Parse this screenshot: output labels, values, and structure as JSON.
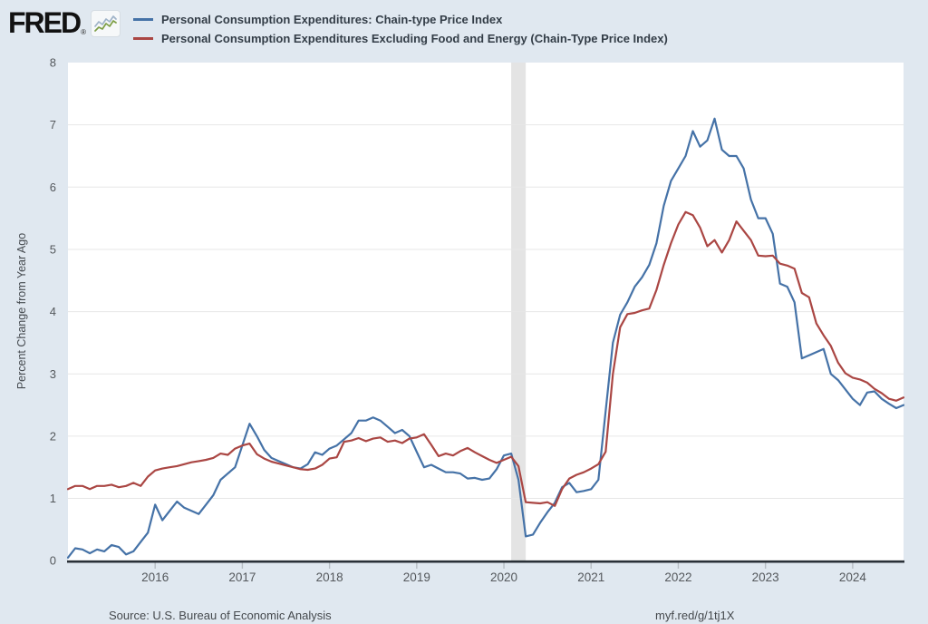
{
  "header": {
    "logo_text": "FRED",
    "logo_registered": "®",
    "legend": [
      {
        "label": "Personal Consumption Expenditures: Chain-type Price Index",
        "color": "#4572a7"
      },
      {
        "label": "Personal Consumption Expenditures Excluding Food and Energy (Chain-Type Price Index)",
        "color": "#aa4643"
      }
    ]
  },
  "footer": {
    "source": "Source: U.S. Bureau of Economic Analysis",
    "shortlink": "myf.red/g/1tj1X"
  },
  "colors": {
    "background": "#e0e8f0",
    "plot_background": "#ffffff",
    "gridline": "#e7e7e7",
    "recession_band": "#e4e4e4",
    "axis_line": "#2a3138",
    "tick_text": "#54585c",
    "tick_mark": "#b6bdc4"
  },
  "chart_data": {
    "type": "line",
    "title": "",
    "xlabel": "",
    "ylabel": "Percent Change from Year Ago",
    "ylim": [
      0,
      8
    ],
    "yticks": [
      0,
      1,
      2,
      3,
      4,
      5,
      6,
      7,
      8
    ],
    "xticks": [
      "2016",
      "2017",
      "2018",
      "2019",
      "2020",
      "2021",
      "2022",
      "2023",
      "2024"
    ],
    "frequency": "monthly",
    "x_start": "2015-01",
    "x_end": "2024-08",
    "grid": "horizontal",
    "legend_position": "top",
    "recession_band": {
      "start": "2020-02",
      "end": "2020-04"
    },
    "series": [
      {
        "name": "Personal Consumption Expenditures: Chain-type Price Index",
        "color": "#4572a7",
        "values": [
          0.05,
          0.2,
          0.18,
          0.12,
          0.18,
          0.15,
          0.25,
          0.22,
          0.1,
          0.15,
          0.3,
          0.45,
          0.9,
          0.65,
          0.8,
          0.95,
          0.85,
          0.8,
          0.75,
          0.9,
          1.05,
          1.3,
          1.4,
          1.5,
          1.85,
          2.2,
          2.0,
          1.78,
          1.65,
          1.6,
          1.55,
          1.5,
          1.48,
          1.55,
          1.74,
          1.7,
          1.8,
          1.85,
          1.95,
          2.05,
          2.25,
          2.25,
          2.3,
          2.25,
          2.15,
          2.05,
          2.1,
          2.0,
          1.75,
          1.5,
          1.54,
          1.48,
          1.42,
          1.42,
          1.4,
          1.32,
          1.33,
          1.3,
          1.32,
          1.47,
          1.69,
          1.72,
          1.3,
          0.39,
          0.42,
          0.61,
          0.78,
          0.93,
          1.18,
          1.25,
          1.1,
          1.12,
          1.15,
          1.3,
          2.4,
          3.5,
          3.95,
          4.15,
          4.4,
          4.55,
          4.75,
          5.1,
          5.7,
          6.1,
          6.3,
          6.5,
          6.9,
          6.65,
          6.75,
          7.1,
          6.6,
          6.5,
          6.5,
          6.3,
          5.8,
          5.5,
          5.5,
          5.25,
          4.45,
          4.4,
          4.15,
          3.25,
          3.3,
          3.35,
          3.4,
          3.0,
          2.9,
          2.75,
          2.6,
          2.5,
          2.7,
          2.72,
          2.6,
          2.52,
          2.45,
          2.5
        ]
      },
      {
        "name": "Personal Consumption Expenditures Excluding Food and Energy (Chain-Type Price Index)",
        "color": "#aa4643",
        "values": [
          1.15,
          1.2,
          1.2,
          1.15,
          1.2,
          1.2,
          1.22,
          1.18,
          1.2,
          1.25,
          1.2,
          1.35,
          1.45,
          1.48,
          1.5,
          1.52,
          1.55,
          1.58,
          1.6,
          1.62,
          1.65,
          1.72,
          1.7,
          1.8,
          1.85,
          1.88,
          1.71,
          1.64,
          1.59,
          1.56,
          1.53,
          1.5,
          1.47,
          1.46,
          1.48,
          1.54,
          1.64,
          1.66,
          1.91,
          1.93,
          1.97,
          1.92,
          1.96,
          1.98,
          1.91,
          1.93,
          1.89,
          1.96,
          1.98,
          2.03,
          1.86,
          1.68,
          1.72,
          1.69,
          1.76,
          1.81,
          1.74,
          1.68,
          1.62,
          1.57,
          1.62,
          1.67,
          1.52,
          0.94,
          0.93,
          0.92,
          0.94,
          0.88,
          1.15,
          1.32,
          1.38,
          1.42,
          1.48,
          1.55,
          1.75,
          3.0,
          3.75,
          3.96,
          3.98,
          4.02,
          4.05,
          4.35,
          4.75,
          5.1,
          5.4,
          5.6,
          5.55,
          5.35,
          5.05,
          5.15,
          4.95,
          5.15,
          5.45,
          5.3,
          5.15,
          4.9,
          4.89,
          4.9,
          4.77,
          4.74,
          4.69,
          4.3,
          4.23,
          3.81,
          3.62,
          3.45,
          3.18,
          3.01,
          2.94,
          2.91,
          2.86,
          2.76,
          2.69,
          2.6,
          2.57,
          2.62
        ]
      }
    ]
  }
}
